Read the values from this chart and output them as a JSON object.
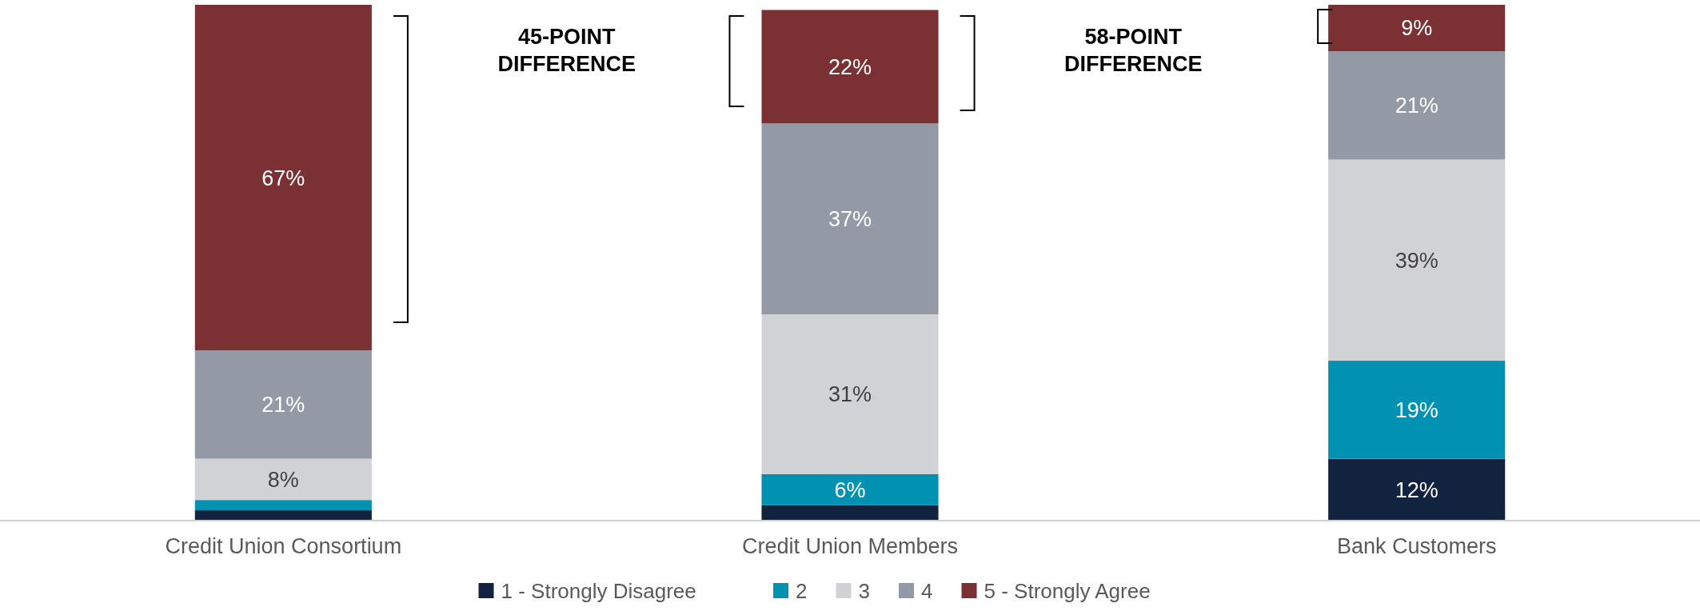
{
  "chart_data": {
    "type": "bar",
    "stacked": true,
    "categories": [
      "Credit Union Consortium",
      "Credit Union Members",
      "Bank Customers"
    ],
    "series": [
      {
        "name": "1 - Strongly Disagree",
        "color": "#12233f",
        "values": [
          2,
          3,
          12
        ],
        "value_labels": [
          null,
          null,
          "12%"
        ]
      },
      {
        "name": "2",
        "color": "#0091b3",
        "values": [
          2,
          6,
          19
        ],
        "value_labels": [
          null,
          "6%",
          "19%"
        ]
      },
      {
        "name": "3",
        "color": "#d0d2d5",
        "values": [
          8,
          31,
          39
        ],
        "value_labels": [
          "8%",
          "31%",
          "39%"
        ]
      },
      {
        "name": "4",
        "color": "#939aa5",
        "values": [
          21,
          37,
          21
        ],
        "value_labels": [
          "21%",
          "37%",
          "21%"
        ]
      },
      {
        "name": "5 - Strongly Agree",
        "color": "#7b3033",
        "values": [
          67,
          22,
          9
        ],
        "value_labels": [
          "67%",
          "22%",
          "9%"
        ]
      }
    ],
    "annotations": [
      "45-POINT\nDIFFERENCE",
      "58-POINT\nDIFFERENCE"
    ],
    "legend": "bottom"
  }
}
